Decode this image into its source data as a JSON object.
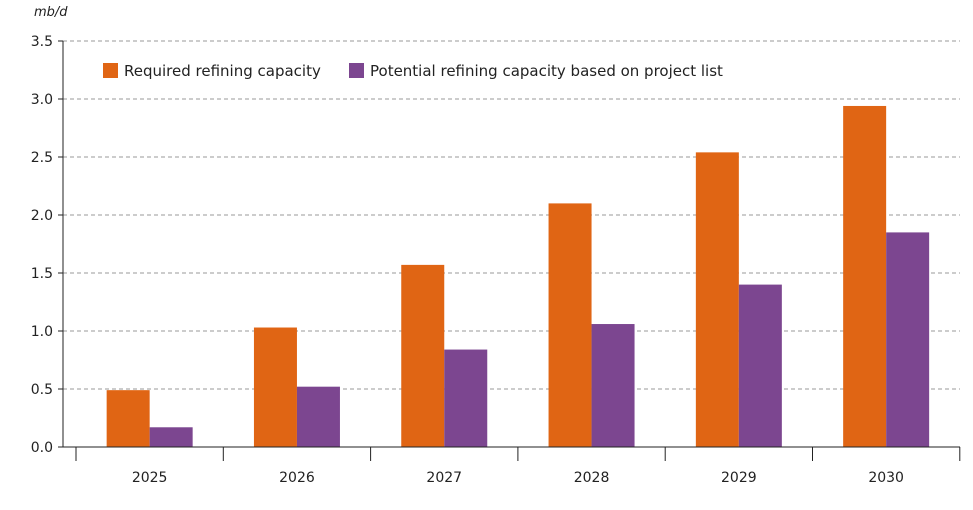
{
  "chart_data": {
    "type": "bar",
    "unit_label": "mb/d",
    "categories": [
      "2025",
      "2026",
      "2027",
      "2028",
      "2029",
      "2030"
    ],
    "series": [
      {
        "name": "Required refining capacity",
        "color": "#e06514",
        "values": [
          0.49,
          1.03,
          1.57,
          2.1,
          2.54,
          2.94
        ]
      },
      {
        "name": "Potential refining capacity based on project list",
        "color": "#7c4690",
        "values": [
          0.17,
          0.52,
          0.84,
          1.06,
          1.4,
          1.85
        ]
      }
    ],
    "ylim": [
      0,
      3.5
    ],
    "yticks": [
      "0.0",
      "0.5",
      "1.0",
      "1.5",
      "2.0",
      "2.5",
      "3.0",
      "3.5"
    ],
    "grid": true,
    "legend_position": "top-left"
  }
}
